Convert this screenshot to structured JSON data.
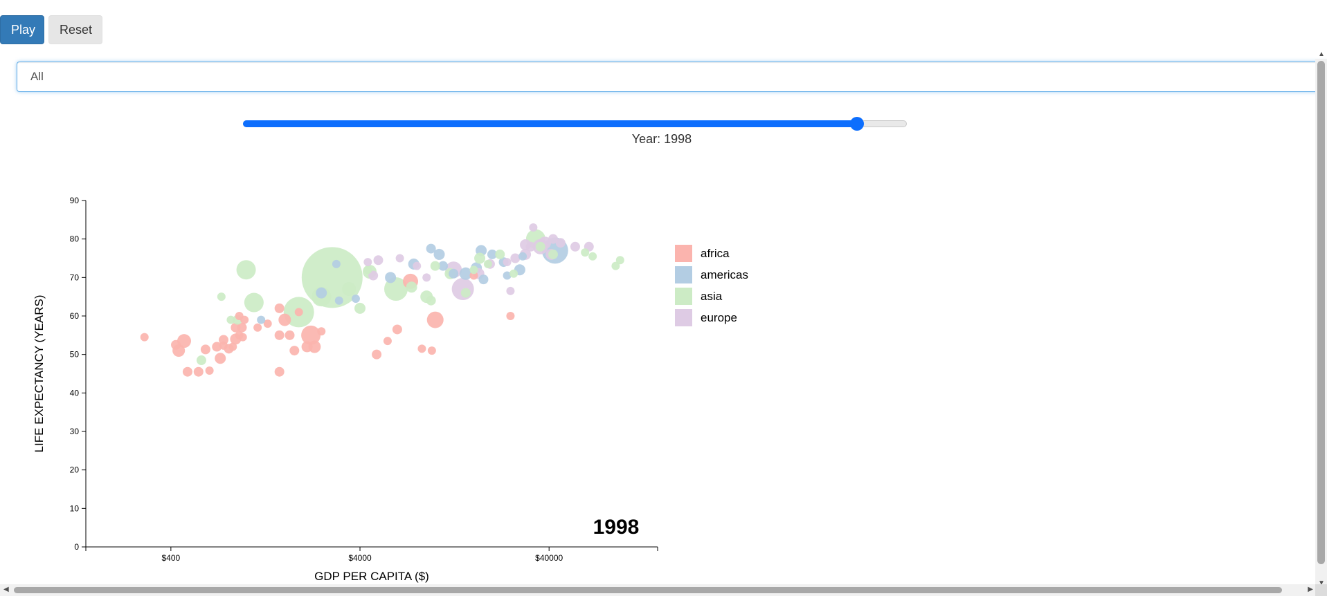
{
  "controls": {
    "play_label": "Play",
    "reset_label": "Reset",
    "filter_value": "All",
    "year_label": "Year: 1998",
    "slider": {
      "min": 1800,
      "max": 2014,
      "value": 1998
    }
  },
  "chart_data": {
    "type": "scatter",
    "title": "",
    "xlabel": "GDP PER CAPITA ($)",
    "ylabel": "LIFE EXPECTANCY (YEARS)",
    "x_scale": "log",
    "xlim": [
      142,
      150000
    ],
    "ylim": [
      0,
      90
    ],
    "x_ticks": [
      400,
      4000,
      40000
    ],
    "x_tick_labels": [
      "$400",
      "$4000",
      "$40000"
    ],
    "y_ticks": [
      0,
      10,
      20,
      30,
      40,
      50,
      60,
      70,
      80,
      90
    ],
    "year_annotation": "1998",
    "legend_position": "right",
    "colors": {
      "africa": "#fbb4ae",
      "americas": "#b3cde3",
      "asia": "#ccebc5",
      "europe": "#decbe4"
    },
    "legend": [
      "africa",
      "americas",
      "asia",
      "europe"
    ],
    "series": [
      {
        "name": "africa",
        "points": [
          [
            290,
            54.5,
            6
          ],
          [
            470,
            53.5,
            10
          ],
          [
            440,
            51,
            9
          ],
          [
            425,
            52.5,
            7
          ],
          [
            490,
            45.5,
            7
          ],
          [
            560,
            45.5,
            7
          ],
          [
            640,
            45.8,
            6
          ],
          [
            610,
            51.3,
            7
          ],
          [
            700,
            52,
            7
          ],
          [
            730,
            49,
            8
          ],
          [
            760,
            53.8,
            7
          ],
          [
            760,
            52.3,
            6
          ],
          [
            810,
            51.5,
            7
          ],
          [
            850,
            52,
            6
          ],
          [
            880,
            54,
            8
          ],
          [
            920,
            55,
            6
          ],
          [
            880,
            57,
            7
          ],
          [
            920,
            60,
            6
          ],
          [
            950,
            57,
            7
          ],
          [
            980,
            59,
            6
          ],
          [
            960,
            54.5,
            6
          ],
          [
            1500,
            55,
            7
          ],
          [
            1600,
            59,
            9
          ],
          [
            1500,
            62,
            7
          ],
          [
            1700,
            55,
            7
          ],
          [
            1900,
            61,
            6
          ],
          [
            1800,
            51,
            7
          ],
          [
            2100,
            52,
            8
          ],
          [
            2200,
            55,
            14
          ],
          [
            2300,
            52,
            9
          ],
          [
            2500,
            56,
            6
          ],
          [
            1500,
            45.5,
            7
          ],
          [
            1300,
            58,
            6
          ],
          [
            1150,
            57,
            6
          ],
          [
            4900,
            50,
            7
          ],
          [
            5600,
            53.5,
            6
          ],
          [
            6300,
            56.5,
            7
          ],
          [
            8500,
            51.5,
            6
          ],
          [
            9600,
            51,
            6
          ],
          [
            10000,
            59,
            12
          ],
          [
            7400,
            69,
            11
          ],
          [
            16000,
            70.5,
            6
          ],
          [
            25000,
            60,
            6
          ]
        ]
      },
      {
        "name": "americas",
        "points": [
          [
            3000,
            73.5,
            6
          ],
          [
            3100,
            64,
            6
          ],
          [
            2500,
            66,
            8
          ],
          [
            3800,
            64.5,
            6
          ],
          [
            5800,
            70,
            8
          ],
          [
            7700,
            73.5,
            8
          ],
          [
            9500,
            77.5,
            7
          ],
          [
            10500,
            76,
            8
          ],
          [
            11000,
            73,
            7
          ],
          [
            12500,
            71,
            7
          ],
          [
            14500,
            71,
            9
          ],
          [
            16500,
            72.5,
            8
          ],
          [
            17500,
            77,
            8
          ],
          [
            18000,
            69.5,
            7
          ],
          [
            20000,
            76,
            7
          ],
          [
            23000,
            74,
            7
          ],
          [
            24000,
            70.5,
            6
          ],
          [
            29000,
            75.5,
            6
          ],
          [
            43000,
            77,
            19
          ],
          [
            28000,
            72,
            8
          ],
          [
            1200,
            59,
            6
          ]
        ]
      },
      {
        "name": "asia",
        "points": [
          [
            1000,
            72,
            14
          ],
          [
            2500,
            65,
            14
          ],
          [
            1900,
            61,
            22
          ],
          [
            2850,
            70,
            44
          ],
          [
            4500,
            71.5,
            10
          ],
          [
            4000,
            62,
            8
          ],
          [
            3500,
            67,
            10
          ],
          [
            4400,
            72,
            6
          ],
          [
            9500,
            64,
            7
          ],
          [
            6200,
            67,
            17
          ],
          [
            7500,
            67.5,
            8
          ],
          [
            9000,
            65,
            9
          ],
          [
            10000,
            73,
            7
          ],
          [
            12000,
            71,
            8
          ],
          [
            14500,
            66,
            7
          ],
          [
            16000,
            72,
            6
          ],
          [
            17200,
            75,
            8
          ],
          [
            19000,
            73.5,
            6
          ],
          [
            22000,
            76,
            7
          ],
          [
            26000,
            71,
            6
          ],
          [
            34000,
            80,
            14
          ],
          [
            36000,
            78,
            7
          ],
          [
            42000,
            76,
            7
          ],
          [
            62000,
            76.5,
            6
          ],
          [
            68000,
            75.5,
            6
          ],
          [
            90000,
            73,
            6
          ],
          [
            95000,
            74.5,
            6
          ],
          [
            740,
            65,
            6
          ],
          [
            580,
            48.5,
            7
          ],
          [
            830,
            59,
            6
          ],
          [
            900,
            59,
            7
          ],
          [
            1100,
            63.5,
            14
          ]
        ]
      },
      {
        "name": "europe",
        "points": [
          [
            4700,
            70.5,
            7
          ],
          [
            5000,
            74.5,
            7
          ],
          [
            4400,
            74,
            6
          ],
          [
            6500,
            75,
            6
          ],
          [
            8000,
            73,
            6
          ],
          [
            9000,
            70,
            6
          ],
          [
            12500,
            72,
            12
          ],
          [
            14000,
            67,
            16
          ],
          [
            17000,
            71,
            8
          ],
          [
            19500,
            73.5,
            7
          ],
          [
            24000,
            74,
            6
          ],
          [
            25000,
            66.5,
            6
          ],
          [
            26500,
            75,
            7
          ],
          [
            30000,
            76,
            8
          ],
          [
            30000,
            78.5,
            8
          ],
          [
            32000,
            78,
            7
          ],
          [
            33000,
            83,
            6
          ],
          [
            36000,
            78,
            11
          ],
          [
            38000,
            79,
            9
          ],
          [
            41000,
            76,
            8
          ],
          [
            46000,
            79,
            7
          ],
          [
            55000,
            78,
            7
          ],
          [
            65000,
            78,
            7
          ],
          [
            42000,
            80,
            7
          ]
        ]
      }
    ]
  }
}
